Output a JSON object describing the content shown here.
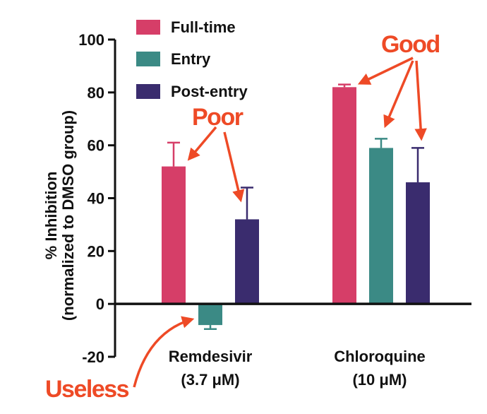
{
  "chart_data": {
    "type": "bar",
    "ylabel_line1": "% Inhibition",
    "ylabel_line2": "(normalized to DMSO group)",
    "ylim": [
      -20,
      100
    ],
    "yticks": [
      "100",
      "80",
      "60",
      "40",
      "20",
      "0",
      "-20"
    ],
    "categories": [
      {
        "line1": "Remdesivir",
        "line2": "(3.7 μM)"
      },
      {
        "line1": "Chloroquine",
        "line2": "(10 μM)"
      }
    ],
    "series": [
      {
        "name": "Full-time",
        "color": "#d63e68",
        "values": [
          52,
          82
        ],
        "errors": [
          9,
          1
        ]
      },
      {
        "name": "Entry",
        "color": "#3b8a85",
        "values": [
          -8,
          59
        ],
        "errors": [
          1.5,
          3.5
        ]
      },
      {
        "name": "Post-entry",
        "color": "#3a2c6e",
        "values": [
          32,
          46
        ],
        "errors": [
          12,
          13
        ]
      }
    ],
    "legend_position": "top-left",
    "annotations": {
      "poor": "Poor",
      "good": "Good",
      "useless": "Useless"
    },
    "annotation_color": "#ee4a26"
  }
}
